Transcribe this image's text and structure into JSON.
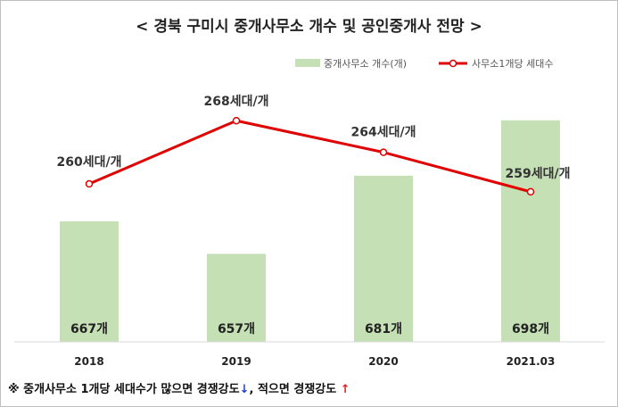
{
  "title": "< 경북 구미시 중개사무소 개수 및 공인중개사 전망 >",
  "legend": {
    "bar_label": "중개사무소 개수(개)",
    "line_label": "사무소1개당 세대수"
  },
  "colors": {
    "bar": "#c5e0b4",
    "line": "#e00000",
    "marker_fill": "#ffffff"
  },
  "chart_data": {
    "type": "bar",
    "title": "< 경북 구미시 중개사무소 개수 및 공인중개사 전망 >",
    "categories": [
      "2018",
      "2019",
      "2020",
      "2021.03"
    ],
    "series": [
      {
        "name": "중개사무소 개수(개)",
        "type": "bar",
        "values": [
          667,
          657,
          681,
          698
        ],
        "labels": [
          "667개",
          "657개",
          "681개",
          "698개"
        ]
      },
      {
        "name": "사무소1개당 세대수",
        "type": "line",
        "values": [
          260,
          268,
          264,
          259
        ],
        "labels": [
          "260세대/개",
          "268세대/개",
          "264세대/개",
          "259세대/개"
        ]
      }
    ],
    "bar_axis_range": [
      630,
      710
    ],
    "line_axis_range": [
      240,
      273
    ],
    "grid": false,
    "legend_position": "top-right"
  },
  "footnote": {
    "text_before_down": "※ 중개사무소 1개당 세대수가 많으면 경쟁강도",
    "arrow_down": "↓",
    "text_middle": ", 적으면 경쟁강도 ",
    "arrow_up": "↑"
  }
}
